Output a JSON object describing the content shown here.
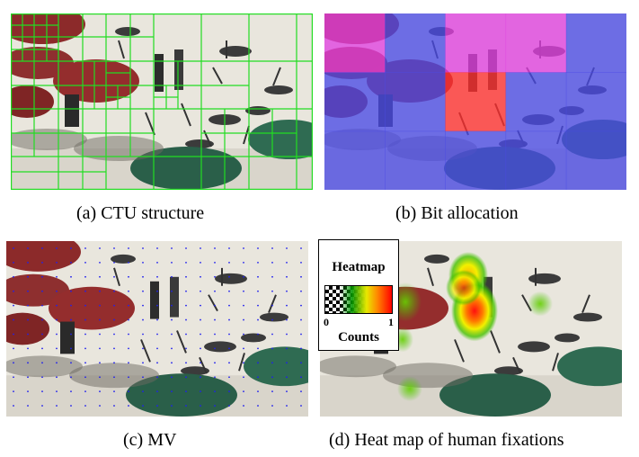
{
  "captions": {
    "a": "(a)  CTU structure",
    "b": "(b)  Bit allocation",
    "c": "(c)  MV",
    "d": "(d)  Heat map of human fixations"
  },
  "legend": {
    "title": "Heatmap",
    "min": "0",
    "max": "1",
    "label": "Counts"
  },
  "colors": {
    "ctu_grid": "#22dd22",
    "bit_low": "#4a4ae6",
    "bit_mid": "#e040e0",
    "bit_high": "#ff3030",
    "mv_dot": "#2020ee"
  },
  "bit_allocation_grid": {
    "rows": 3,
    "cols": 5,
    "levels": [
      [
        "mid",
        "low",
        "mid",
        "mid",
        "low"
      ],
      [
        "low",
        "low",
        "high",
        "low",
        "low"
      ],
      [
        "low",
        "low",
        "low",
        "low",
        "low"
      ]
    ]
  }
}
